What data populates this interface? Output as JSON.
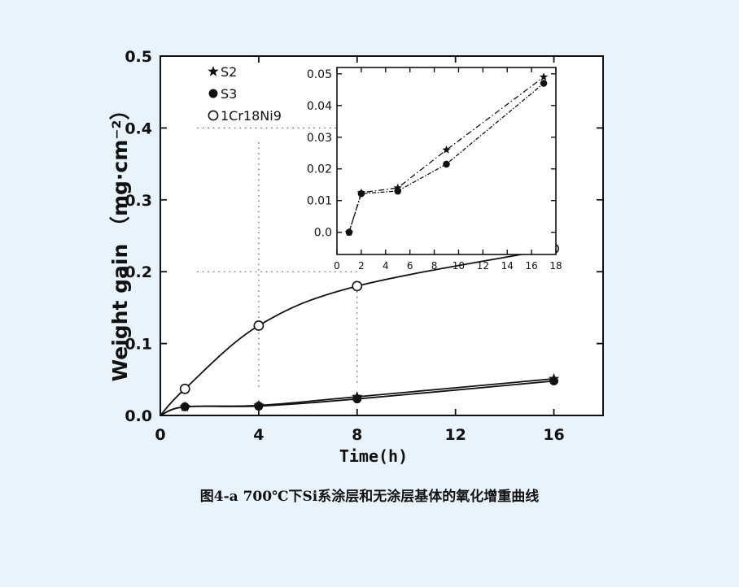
{
  "caption": "图4-a 700℃下Si系涂层和无涂层基体的氧化增重曲线",
  "chart_data": [
    {
      "id": "main",
      "type": "line",
      "xlabel": "Time(h)",
      "ylabel": "Weight gain （mg·cm⁻²）",
      "xlim": [
        0,
        18
      ],
      "ylim": [
        0,
        0.5
      ],
      "xticks": [
        0,
        4,
        8,
        12,
        16
      ],
      "yticks": [
        0.0,
        0.1,
        0.2,
        0.3,
        0.4,
        0.5
      ],
      "legend_position": "top-left",
      "series": [
        {
          "name": "S2",
          "marker": "star",
          "x": [
            1,
            4,
            8,
            16
          ],
          "y": [
            0.012,
            0.014,
            0.026,
            0.051
          ]
        },
        {
          "name": "S3",
          "marker": "filled-circle",
          "x": [
            1,
            4,
            8,
            16
          ],
          "y": [
            0.012,
            0.013,
            0.023,
            0.048
          ]
        },
        {
          "name": "1Cr18Ni9",
          "marker": "open-circle",
          "x": [
            1,
            4,
            8,
            16
          ],
          "y": [
            0.037,
            0.125,
            0.18,
            0.232
          ]
        }
      ]
    },
    {
      "id": "inset",
      "type": "line",
      "xlim": [
        0,
        18
      ],
      "ylim": [
        -0.007,
        0.052
      ],
      "xticks": [
        0,
        2,
        4,
        6,
        8,
        10,
        12,
        14,
        16,
        18
      ],
      "yticks": [
        0.0,
        0.01,
        0.02,
        0.03,
        0.04,
        0.05
      ],
      "series": [
        {
          "name": "S2",
          "marker": "star",
          "x": [
            1,
            2,
            5,
            9,
            17
          ],
          "y": [
            0.0,
            0.0125,
            0.014,
            0.026,
            0.049
          ]
        },
        {
          "name": "S3",
          "marker": "filled-circle",
          "x": [
            1,
            2,
            5,
            9,
            17
          ],
          "y": [
            0.0,
            0.0122,
            0.013,
            0.0215,
            0.047
          ]
        }
      ]
    }
  ]
}
